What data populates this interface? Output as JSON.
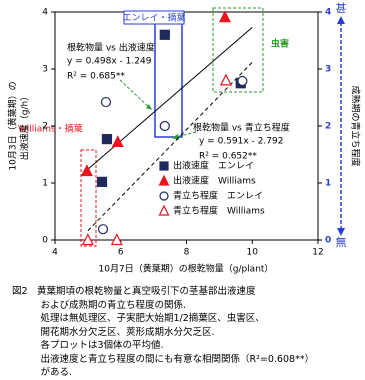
{
  "chart_data": {
    "type": "scatter",
    "xlabel": "10月7日（黄葉期）の根乾物量（g/plant）",
    "ylabel": [
      "10月3日（黄葉期）の",
      "出液速度（g/h）"
    ],
    "y2label": "成熟期の青立ち程度",
    "y2top": "甚",
    "y2bottom": "無",
    "xlim": [
      4,
      12
    ],
    "xticks": [
      4,
      6,
      8,
      10,
      12
    ],
    "ylim": [
      0,
      4
    ],
    "yticks": [
      0,
      1,
      2,
      3,
      4
    ],
    "y2lim": [
      0,
      4
    ],
    "y2ticks": [
      0,
      1,
      2,
      3,
      4
    ],
    "series": [
      {
        "name": "出液速度　エンレイ",
        "marker": "square",
        "filled": true,
        "color": "#1f2a5c",
        "x": [
          5.58,
          5.43,
          7.34,
          9.65
        ],
        "values": [
          1.77,
          1.02,
          3.6,
          2.75
        ]
      },
      {
        "name": "出液速度　Williams",
        "marker": "triangle",
        "filled": true,
        "color": "#e8141e",
        "x": [
          4.97,
          5.91,
          9.17
        ],
        "values": [
          1.21,
          1.72,
          3.91
        ]
      },
      {
        "name": "青立ち程度　エンレイ",
        "marker": "circle",
        "filled": false,
        "color": "#1f2a5c",
        "axis": "y2",
        "x": [
          5.55,
          7.34,
          5.46,
          9.7
        ],
        "values": [
          2.42,
          2.0,
          0.19,
          2.79
        ]
      },
      {
        "name": "青立ち程度　Williams",
        "marker": "triangle",
        "filled": false,
        "color": "#e8141e",
        "axis": "y2",
        "x": [
          5.0,
          5.88,
          9.2
        ],
        "values": [
          0,
          0,
          2.8
        ]
      }
    ],
    "trend_lines": [
      {
        "x": [
          5,
          10
        ],
        "values": [
          1.241,
          3.731
        ],
        "dash": false
      },
      {
        "x": [
          5,
          10
        ],
        "values": [
          0.163,
          3.118
        ],
        "axis": "y2",
        "dash": true
      }
    ],
    "annotations": {
      "eq1": [
        "根乾物量 vs 出液速度",
        "y = 0.498x - 1.249",
        "R² = 0.685**"
      ],
      "eq2": [
        "根乾物量 vs 青立ち程度",
        "y = 0.591x - 2.792",
        "R² = 0.652**"
      ],
      "enrei": "エンレイ・摘葉",
      "williams": "Williams・摘葉",
      "pest": "虫害"
    }
  },
  "caption": [
    "図2　黄葉期頃の根乾物量と真空吸引下の茎基部出液速度",
    "　　　および成熟期の青立ち程度の関係.",
    "　　　処理は無処理区、子実肥大始期1/2摘葉区、虫害区、",
    "　　　開花期水分欠乏区、莢形成期水分欠乏区.",
    "　　　各プロットは3個体の平均値.",
    "　　　出液速度と青立ち程度の間にも有意な相関関係（R²=0.608**）",
    "　　　がある."
  ]
}
